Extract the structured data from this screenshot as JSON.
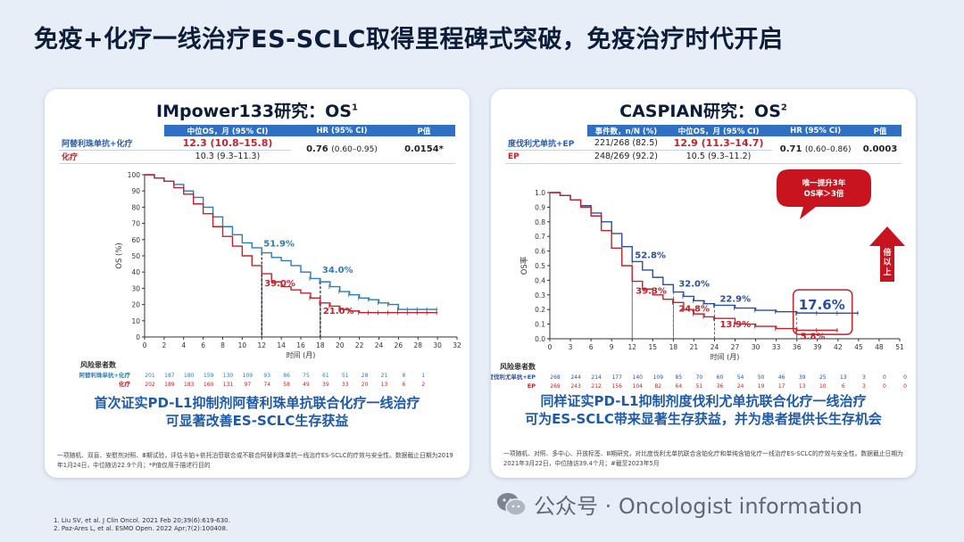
{
  "slide_title": "免疫+化疗一线治疗ES-SCLC取得里程碑式突破，免疫治疗时代开启",
  "left": {
    "title": "IMpower133研究：OS",
    "title_sup": "1",
    "table": {
      "headers": [
        "",
        "中位OS，月 (95% CI)",
        "HR (95% CI)",
        "P值"
      ],
      "arms": [
        {
          "name": "阿替利珠单抗+化疗",
          "mos": "12.3 (10.8–15.8)"
        },
        {
          "name": "化疗",
          "mos": "10.3 (9.3–11.3)"
        }
      ],
      "hr": "0.76",
      "hr_ci": "(0.60–0.95)",
      "p": "0.0154*"
    },
    "chart_data": {
      "type": "line",
      "xlabel": "时间 (月)",
      "ylabel": "OS (%)",
      "xlim": [
        0,
        32
      ],
      "ylim": [
        0,
        100
      ],
      "xticks": [
        0,
        2,
        4,
        6,
        8,
        10,
        12,
        14,
        16,
        18,
        20,
        22,
        24,
        26,
        28,
        30,
        32
      ],
      "yticks": [
        0,
        10,
        20,
        30,
        40,
        50,
        60,
        70,
        80,
        90,
        100
      ],
      "series": [
        {
          "name": "阿替利珠单抗+化疗",
          "color": "#2f7ab8",
          "x": [
            0,
            1,
            2,
            3,
            4,
            5,
            6,
            7,
            8,
            9,
            10,
            11,
            12,
            13,
            14,
            15,
            16,
            17,
            18,
            19,
            20,
            21,
            22,
            23,
            24,
            25,
            26,
            27,
            28,
            29,
            30
          ],
          "y": [
            100,
            98,
            96,
            94,
            90,
            86,
            80,
            74,
            68,
            63,
            58,
            55,
            51.9,
            49,
            47,
            44,
            40,
            36,
            34,
            31,
            28,
            26,
            24,
            23,
            21,
            20,
            17,
            17,
            17,
            17,
            17
          ]
        },
        {
          "name": "化疗",
          "color": "#c0232c",
          "x": [
            0,
            1,
            2,
            3,
            4,
            5,
            6,
            7,
            8,
            9,
            10,
            11,
            12,
            13,
            14,
            15,
            16,
            17,
            18,
            19,
            20,
            21,
            22,
            23,
            24,
            25,
            26,
            27,
            28,
            29,
            30
          ],
          "y": [
            100,
            98,
            96,
            92,
            88,
            82,
            76,
            68,
            62,
            56,
            50,
            44,
            39,
            34,
            31,
            29,
            27,
            24,
            21,
            19,
            17,
            16,
            15,
            15,
            15,
            15,
            15,
            15,
            15,
            15,
            15
          ]
        }
      ],
      "annotations": [
        {
          "label": "51.9%",
          "x": 12,
          "y": 51.9,
          "color": "#2f7ab8"
        },
        {
          "label": "34.0%",
          "x": 18,
          "y": 34.0,
          "color": "#2f7ab8"
        },
        {
          "label": "39.0%",
          "x": 12,
          "y": 39.0,
          "color": "#c0232c"
        },
        {
          "label": "21.0%",
          "x": 18,
          "y": 21.0,
          "color": "#c0232c"
        }
      ],
      "risk_title": "风险患者数",
      "risk_x": [
        0,
        2,
        4,
        6,
        8,
        10,
        12,
        14,
        16,
        18,
        20,
        22,
        24,
        26,
        28,
        30
      ],
      "risk": [
        {
          "name": "阿替利珠单抗+化疗",
          "color": "#2f7ab8",
          "values": [
            "201",
            "187",
            "180",
            "159",
            "130",
            "109",
            "93",
            "86",
            "75",
            "61",
            "51",
            "28",
            "21",
            "8",
            "1",
            ""
          ]
        },
        {
          "name": "化疗",
          "color": "#c0232c",
          "values": [
            "202",
            "189",
            "183",
            "160",
            "131",
            "97",
            "74",
            "58",
            "49",
            "39",
            "33",
            "20",
            "13",
            "6",
            "2",
            ""
          ]
        }
      ]
    },
    "conclusion": [
      "首次证实PD-L1抑制剂阿替利珠单抗联合化疗一线治疗",
      "可显著改善ES-SCLC生存获益"
    ],
    "footnote": "一项随机、双盲、安慰剂对照、Ⅲ期试验，评估卡铂+依托泊苷联合或不联合阿替利珠单抗一线治疗ES-SCLC的疗效与安全性。数据截止日期为2019年1月24日，中位随访22.9个月；*P值仅用于描述行目的"
  },
  "right": {
    "title": "CASPIAN研究：OS",
    "title_sup": "2",
    "table": {
      "headers": [
        "",
        "事件数，n/N (%)",
        "中位OS，月 (95% CI)",
        "HR (95% CI)",
        "P值"
      ],
      "arms": [
        {
          "name": "度伐利尤单抗+EP",
          "events": "221/268 (82.5)",
          "mos": "12.9 (11.3–14.7)"
        },
        {
          "name": "EP",
          "events": "248/269 (92.2)",
          "mos": "10.5 (9.3–11.2)"
        }
      ],
      "hr": "0.71",
      "hr_ci": "(0.60–0.86)",
      "p": "0.0003"
    },
    "chart_data": {
      "type": "line",
      "xlabel": "时间 (月)",
      "ylabel": "OS率",
      "xlim": [
        0,
        51
      ],
      "ylim": [
        0,
        1.0
      ],
      "xticks": [
        0,
        3,
        6,
        9,
        12,
        15,
        18,
        21,
        24,
        27,
        30,
        33,
        36,
        39,
        42,
        45,
        48,
        51
      ],
      "yticks": [
        0,
        0.1,
        0.2,
        0.3,
        0.4,
        0.5,
        0.6,
        0.7,
        0.8,
        0.9,
        1.0
      ],
      "series": [
        {
          "name": "度伐利尤单抗+EP",
          "color": "#2a4f9e",
          "x": [
            0,
            1.5,
            3,
            4.5,
            6,
            7.5,
            9,
            10.5,
            12,
            13.5,
            15,
            16.5,
            18,
            19.5,
            21,
            22.5,
            24,
            27,
            30,
            33,
            36,
            39,
            42,
            45
          ],
          "y": [
            1.0,
            0.98,
            0.95,
            0.91,
            0.86,
            0.8,
            0.72,
            0.63,
            0.528,
            0.47,
            0.42,
            0.37,
            0.32,
            0.29,
            0.26,
            0.24,
            0.229,
            0.21,
            0.195,
            0.185,
            0.176,
            0.175,
            0.175,
            0.175
          ]
        },
        {
          "name": "EP",
          "color": "#c0232c",
          "x": [
            0,
            1.5,
            3,
            4.5,
            6,
            7.5,
            9,
            10.5,
            12,
            13.5,
            15,
            16.5,
            18,
            19.5,
            21,
            22.5,
            24,
            27,
            30,
            33,
            36,
            39,
            42
          ],
          "y": [
            1.0,
            0.98,
            0.95,
            0.9,
            0.84,
            0.74,
            0.62,
            0.5,
            0.393,
            0.34,
            0.3,
            0.27,
            0.248,
            0.2,
            0.17,
            0.15,
            0.139,
            0.1,
            0.085,
            0.07,
            0.058,
            0.058,
            0.058
          ]
        }
      ],
      "annotations": [
        {
          "label": "52.8%",
          "x": 12,
          "y": 0.528,
          "color": "#2a4f9e"
        },
        {
          "label": "32.0%",
          "x": 18,
          "y": 0.32,
          "color": "#2a4f9e"
        },
        {
          "label": "22.9%",
          "x": 24,
          "y": 0.229,
          "color": "#2a4f9e"
        },
        {
          "label": "17.6%",
          "x": 36,
          "y": 0.176,
          "color": "#2a4f9e"
        },
        {
          "label": "39.3%",
          "x": 12,
          "y": 0.393,
          "color": "#c0232c"
        },
        {
          "label": "24.8%",
          "x": 18,
          "y": 0.248,
          "color": "#c0232c"
        },
        {
          "label": "13.9%",
          "x": 24,
          "y": 0.139,
          "color": "#c0232c"
        },
        {
          "label": "5.8%",
          "x": 36,
          "y": 0.058,
          "color": "#c0232c"
        }
      ],
      "callout": "唯一提升3年\nOS率＞3倍",
      "arrow_label": "倍以上",
      "risk_title": "风险患者数",
      "risk_x": [
        0,
        3,
        6,
        9,
        12,
        15,
        18,
        21,
        24,
        27,
        30,
        33,
        36,
        39,
        42,
        45,
        48,
        51
      ],
      "risk": [
        {
          "name": "度伐利尤单抗+EP",
          "color": "#2a4f9e",
          "values": [
            "268",
            "244",
            "214",
            "177",
            "140",
            "109",
            "85",
            "70",
            "60",
            "54",
            "50",
            "46",
            "39",
            "25",
            "13",
            "3",
            "0",
            "0"
          ]
        },
        {
          "name": "EP",
          "color": "#c0232c",
          "values": [
            "269",
            "243",
            "212",
            "156",
            "104",
            "82",
            "64",
            "51",
            "36",
            "24",
            "19",
            "17",
            "13",
            "10",
            "6",
            "3",
            "0",
            "0"
          ]
        }
      ]
    },
    "conclusion": [
      "同样证实PD-L1抑制剂度伐利尤单抗联合化疗一线治疗",
      "可为ES-SCLC带来显著生存获益，并为患者提供长生存机会"
    ],
    "footnote": "一项随机、对照、多中心、开放标签、Ⅲ期研究，对比度伐利尤单抗联合含铂化疗和单纯含铂化疗一线治疗ES-SCLC的疗效与安全性。数据截止日期为2021年3月22日，中位随访39.4个月；#截至2023年5月"
  },
  "references": [
    "1.    Liu SV, et al. J Clin Oncol. 2021 Feb 20;39(6):619-630.",
    "2.    Paz-Ares L, et al. ESMO Open. 2022 Apr;7(2):100408."
  ],
  "watermark": "公众号 · Oncologist information"
}
